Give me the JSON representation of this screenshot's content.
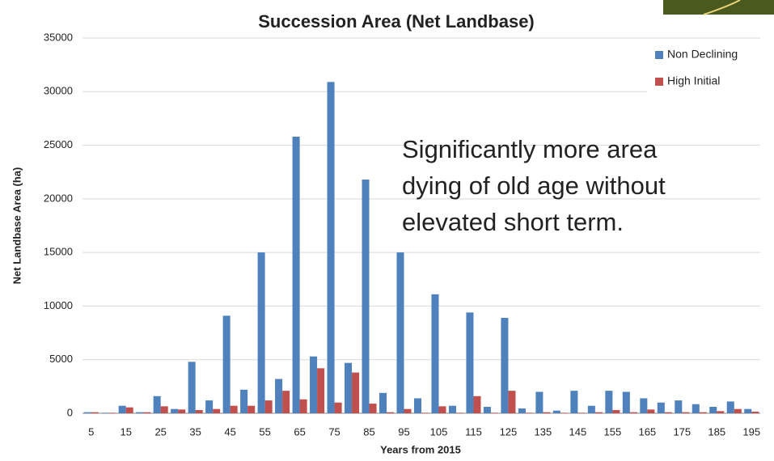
{
  "chart_data": {
    "type": "bar",
    "title": "Succession Area (Net Landbase)",
    "x_label": "Years from 2015",
    "y_label": "Net Landbase Area (ha)",
    "categories": [
      5,
      null,
      15,
      null,
      25,
      null,
      35,
      null,
      45,
      null,
      55,
      null,
      65,
      null,
      75,
      null,
      85,
      null,
      95,
      null,
      105,
      null,
      115,
      null,
      125,
      null,
      135,
      null,
      145,
      null,
      155,
      null,
      165,
      null,
      175,
      null,
      185,
      null,
      195
    ],
    "series": [
      {
        "name": "Non Declining",
        "color": "#4f81bd",
        "values": [
          100,
          50,
          700,
          100,
          1600,
          400,
          4800,
          1200,
          9100,
          2200,
          15000,
          3200,
          25800,
          5300,
          30900,
          4700,
          21800,
          1900,
          15000,
          1400,
          11100,
          700,
          9400,
          600,
          8900,
          450,
          2000,
          250,
          2100,
          700,
          2100,
          2000,
          1400,
          1000,
          1200,
          850,
          600,
          1100,
          400
        ]
      },
      {
        "name": "High Initial",
        "color": "#c0504d",
        "values": [
          100,
          50,
          550,
          100,
          650,
          350,
          300,
          400,
          700,
          700,
          1200,
          2100,
          1300,
          4200,
          1000,
          3800,
          900,
          100,
          400,
          50,
          650,
          50,
          1600,
          50,
          2100,
          50,
          100,
          50,
          50,
          100,
          300,
          100,
          350,
          100,
          100,
          100,
          200,
          400,
          150
        ]
      }
    ],
    "ylim": [
      0,
      35000
    ],
    "yticks": [
      0,
      5000,
      10000,
      15000,
      20000,
      25000,
      30000,
      35000
    ],
    "grid": true,
    "legend": "top-right",
    "annotation": [
      "Significantly more",
      "area",
      "dying of old age without",
      "elevated short term."
    ]
  }
}
